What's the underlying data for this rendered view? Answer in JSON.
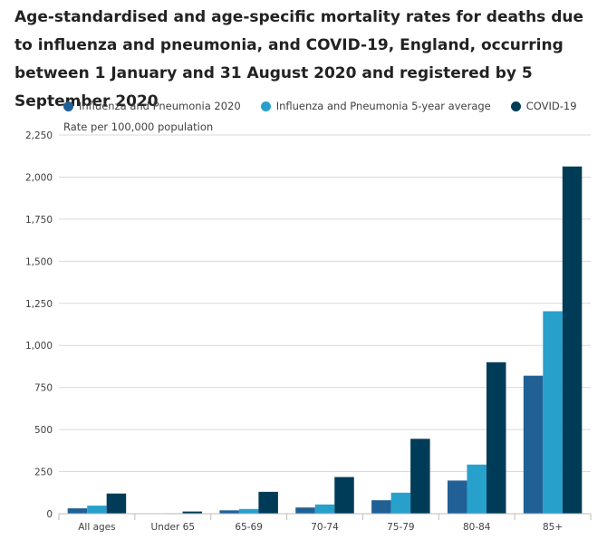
{
  "colors": {
    "influenza_2020": "#206095",
    "influenza_5yr": "#27A0CC",
    "covid": "#003C57",
    "gridline": "#d9d9d9",
    "axis": "#bebebe"
  },
  "chart_data": {
    "type": "bar",
    "title": "Age-standardised and age-specific mortality rates for deaths due to influenza and pneumonia, and COVID-19, England, occurring between 1 January and 31 August 2020 and registered by 5 September 2020",
    "ylabel": "Rate per 100,000 population",
    "xlabel": "",
    "ylim": [
      0,
      2250
    ],
    "yticks": [
      0,
      250,
      500,
      750,
      1000,
      1250,
      1500,
      1750,
      2000,
      2250
    ],
    "ytick_labels": [
      "0",
      "250",
      "500",
      "750",
      "1,000",
      "1,250",
      "1,500",
      "1,750",
      "2,000",
      "2,250"
    ],
    "grid": true,
    "legend_position": "top-left",
    "categories": [
      "All ages",
      "Under 65",
      "65-69",
      "70-74",
      "75-79",
      "80-84",
      "85+"
    ],
    "series": [
      {
        "name": "Influenza and Pneumonia 2020",
        "color_key": "influenza_2020",
        "values": [
          32,
          2,
          20,
          37,
          80,
          197,
          820
        ]
      },
      {
        "name": "Influenza and Pneumonia 5-year average",
        "color_key": "influenza_5yr",
        "values": [
          48,
          3,
          28,
          55,
          125,
          292,
          1203
        ]
      },
      {
        "name": "COVID-19",
        "color_key": "covid",
        "values": [
          120,
          13,
          130,
          218,
          445,
          900,
          2063
        ]
      }
    ]
  }
}
